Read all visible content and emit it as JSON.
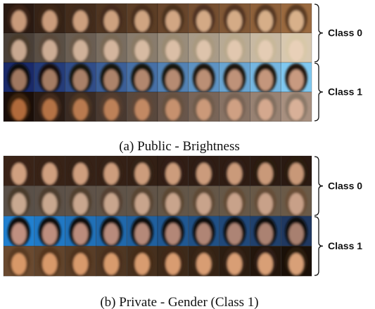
{
  "panels": [
    {
      "caption": "(a) Public - Brightness",
      "classes": [
        "Class 0",
        "Class 1"
      ]
    },
    {
      "caption": "(b) Private - Gender (Class 1)",
      "classes": [
        "Class 0",
        "Class 1"
      ]
    }
  ]
}
